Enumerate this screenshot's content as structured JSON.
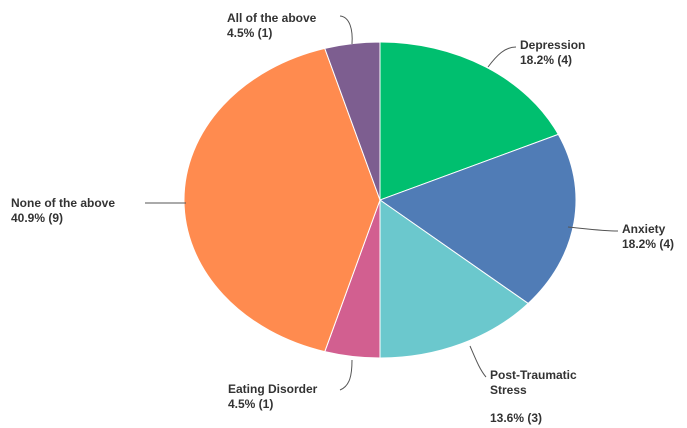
{
  "chart_data": {
    "type": "pie",
    "title": "",
    "slices": [
      {
        "name": "Depression",
        "percent_label": "18.2% (4)",
        "percent": 18.2,
        "count": 4,
        "color": "#00BF6F"
      },
      {
        "name": "Anxiety",
        "percent_label": "18.2% (4)",
        "percent": 18.2,
        "count": 4,
        "color": "#507CB6"
      },
      {
        "name": "Post-Traumatic Stress",
        "name_lines": [
          "Post-Traumatic",
          "Stress"
        ],
        "percent_label": "13.6% (3)",
        "percent": 13.6,
        "count": 3,
        "color": "#6BC8CD"
      },
      {
        "name": "Eating Disorder",
        "percent_label": "4.5% (1)",
        "percent": 4.5,
        "count": 1,
        "color": "#D25F90"
      },
      {
        "name": "None of the above",
        "percent_label": "40.9% (9)",
        "percent": 40.9,
        "count": 9,
        "color": "#FF8B4F"
      },
      {
        "name": "All of the above",
        "percent_label": "4.5% (1)",
        "percent": 4.5,
        "count": 1,
        "color": "#7D5E90"
      }
    ],
    "legend": "none",
    "label_placement": "outside-with-leader-lines"
  }
}
